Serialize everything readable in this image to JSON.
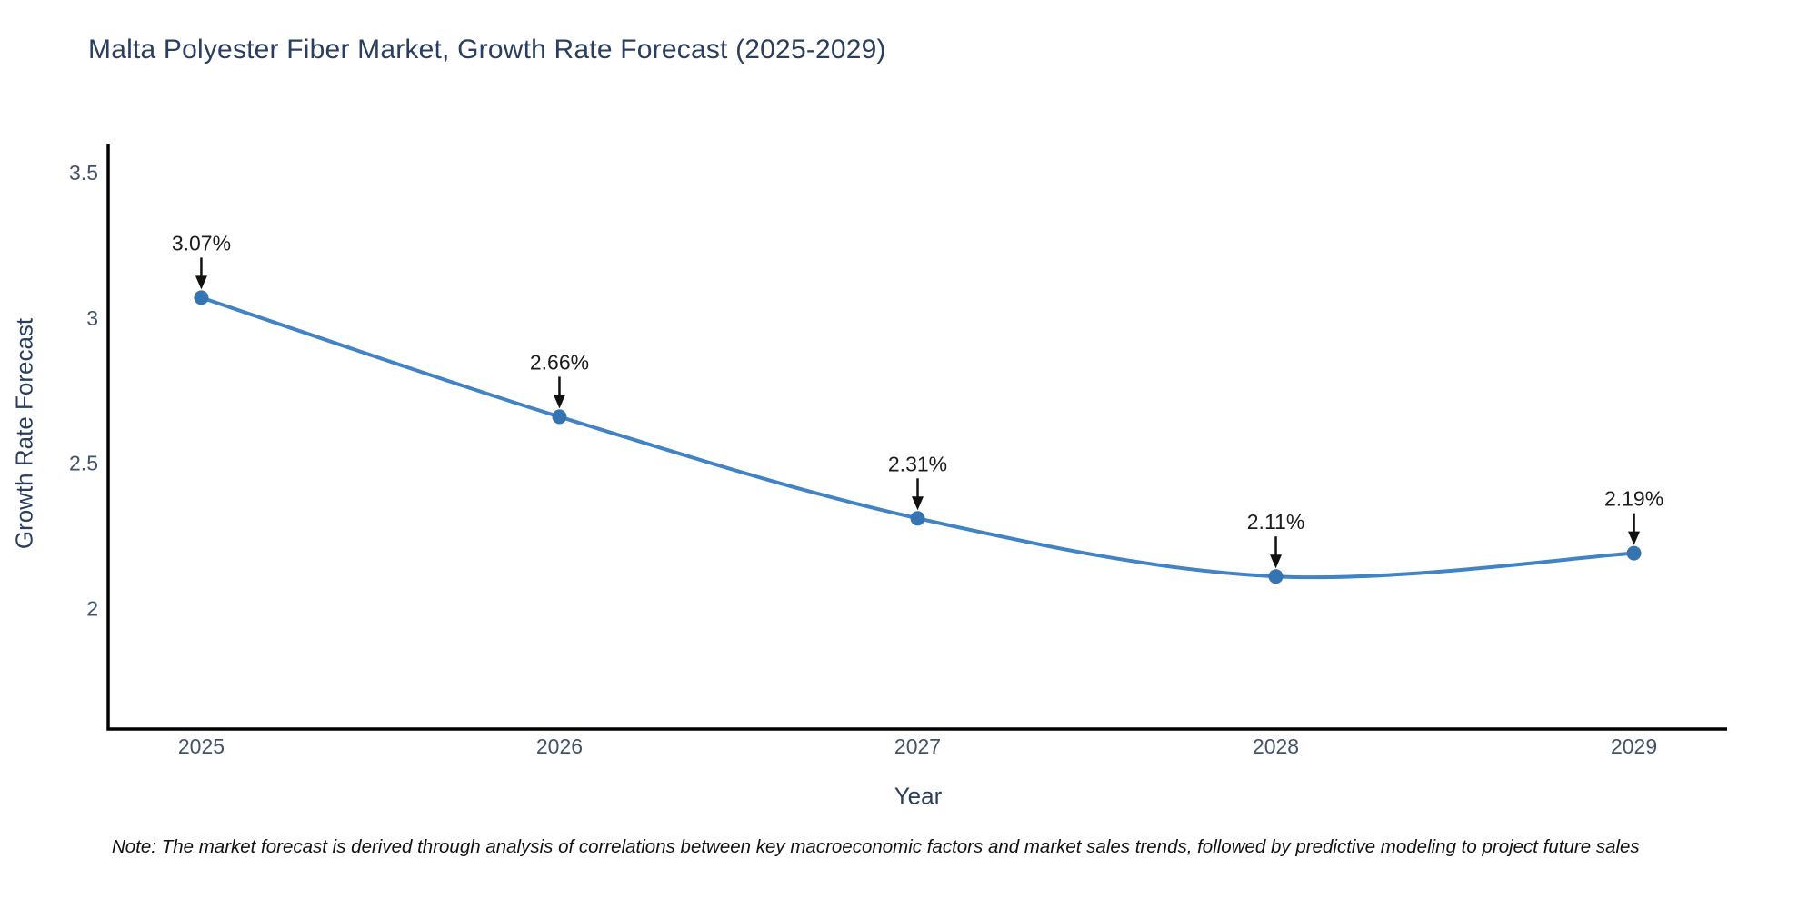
{
  "chart_data": {
    "type": "line",
    "title": "Malta Polyester Fiber Market, Growth Rate Forecast (2025-2029)",
    "xlabel": "Year",
    "ylabel": "Growth Rate Forecast",
    "categories": [
      2025,
      2026,
      2027,
      2028,
      2029
    ],
    "series": [
      {
        "name": "Growth Rate Forecast",
        "values": [
          3.07,
          2.66,
          2.31,
          2.11,
          2.19
        ],
        "point_labels": [
          "3.07%",
          "2.66%",
          "2.31%",
          "2.11%",
          "2.19%"
        ]
      }
    ],
    "yticks": [
      2,
      2.5,
      3,
      3.5
    ],
    "ytick_labels": [
      "2",
      "2.5",
      "3",
      "3.5"
    ],
    "xtick_labels": [
      "2025",
      "2026",
      "2027",
      "2028",
      "2029"
    ],
    "ylim": [
      1.585,
      3.6
    ],
    "xlim": [
      2024.74,
      2029.26
    ],
    "grid": false,
    "legend": false,
    "line_shape": "spline",
    "annotation_style": "arrow-down-to-point",
    "colors": {
      "line": "#4183c4",
      "marker": "#3474b3",
      "annotation_text": "#1c1c1c",
      "arrow": "#111111",
      "axis_line": "#000000",
      "tick_label": "#42546b",
      "axis_title": "#2a3f5f",
      "chart_title": "#2a3f5f",
      "background": "#ffffff"
    }
  },
  "note": "Note: The market forecast is derived through analysis of correlations between key macroeconomic factors and market sales trends, followed by predictive modeling to project future sales"
}
